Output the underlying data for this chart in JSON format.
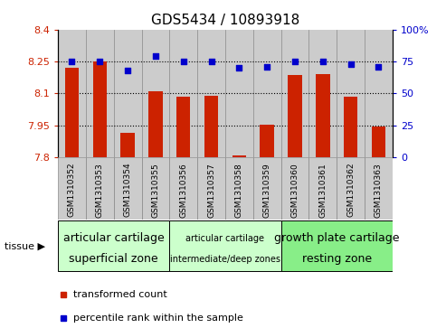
{
  "title": "GDS5434 / 10893918",
  "categories": [
    "GSM1310352",
    "GSM1310353",
    "GSM1310354",
    "GSM1310355",
    "GSM1310356",
    "GSM1310357",
    "GSM1310358",
    "GSM1310359",
    "GSM1310360",
    "GSM1310361",
    "GSM1310362",
    "GSM1310363"
  ],
  "bar_values": [
    8.22,
    8.25,
    7.915,
    8.11,
    8.085,
    8.09,
    7.81,
    7.955,
    8.185,
    8.19,
    8.085,
    7.945
  ],
  "scatter_values": [
    75,
    75,
    68,
    79,
    75,
    75,
    70,
    71,
    75,
    75,
    73,
    71
  ],
  "bar_color": "#cc2200",
  "scatter_color": "#0000cc",
  "ylim_left": [
    7.8,
    8.4
  ],
  "ylim_right": [
    0,
    100
  ],
  "yticks_left": [
    7.8,
    7.95,
    8.1,
    8.25,
    8.4
  ],
  "yticks_right": [
    0,
    25,
    50,
    75,
    100
  ],
  "ytick_labels_left": [
    "7.8",
    "7.95",
    "8.1",
    "8.25",
    "8.4"
  ],
  "ytick_labels_right": [
    "0",
    "25",
    "50",
    "75",
    "100%"
  ],
  "tissue_groups": [
    {
      "label": "articular cartilage\nsuperficial zone",
      "start": 0,
      "end": 4,
      "color": "#ccffcc",
      "fontsize": 9
    },
    {
      "label": "articular cartilage\nintermediate/deep zones",
      "start": 4,
      "end": 8,
      "color": "#ccffcc",
      "fontsize": 7
    },
    {
      "label": "growth plate cartilage\nresting zone",
      "start": 8,
      "end": 12,
      "color": "#88ee88",
      "fontsize": 9
    }
  ],
  "tissue_label": "tissue",
  "legend_items": [
    {
      "label": "transformed count",
      "color": "#cc2200"
    },
    {
      "label": "percentile rank within the sample",
      "color": "#0000cc"
    }
  ],
  "cell_bg_color": "#cccccc",
  "cell_border_color": "#888888",
  "plot_bg_color": "#ffffff",
  "dotted_line_color": "#000000",
  "bar_width": 0.5
}
